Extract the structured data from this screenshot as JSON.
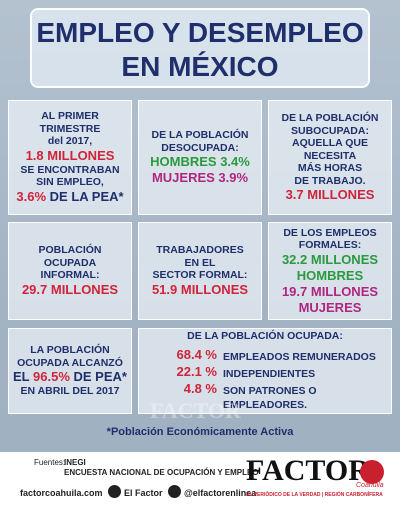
{
  "header": {
    "title_lines": [
      "EMPLEO Y DESEMPLEO",
      "EN MÉXICO"
    ]
  },
  "cells": [
    {
      "lines": [
        [
          {
            "text": "AL PRIMER"
          }
        ],
        [
          {
            "text": "TRIMESTRE"
          }
        ],
        [
          {
            "text": "del 2017,"
          }
        ],
        [
          {
            "text": "1.8 MILLONES",
            "color": "#d0243a"
          }
        ],
        [
          {
            "text": "SE ENCONTRABAN"
          }
        ],
        [
          {
            "text": "SIN EMPLEO,"
          }
        ],
        [
          {
            "text": "3.6%",
            "color": "#d0243a"
          },
          {
            "text": " DE LA PEA*"
          }
        ]
      ]
    },
    {
      "lines": [
        [
          {
            "text": "DE LA POBLACIÓN"
          }
        ],
        [
          {
            "text": "DESOCUPADA:"
          }
        ],
        [
          {
            "text": "HOMBRES 3.4%",
            "color": "#2a9a3f"
          }
        ],
        [
          {
            "text": "MUJERES 3.9%",
            "color": "#b0267f"
          }
        ]
      ]
    },
    {
      "lines": [
        [
          {
            "text": "DE LA POBLACIÓN"
          }
        ],
        [
          {
            "text": "SUBOCUPADA:"
          }
        ],
        [
          {
            "text": "AQUELLA QUE"
          }
        ],
        [
          {
            "text": "NECESITA"
          }
        ],
        [
          {
            "text": "MÁS HORAS"
          }
        ],
        [
          {
            "text": "DE TRABAJO."
          }
        ],
        [
          {
            "text": "3.7 MILLONES",
            "color": "#d0243a"
          }
        ]
      ]
    },
    {
      "lines": [
        [
          {
            "text": "POBLACIÓN"
          }
        ],
        [
          {
            "text": "OCUPADA"
          }
        ],
        [
          {
            "text": "INFORMAL:"
          }
        ],
        [
          {
            "text": "29.7 MILLONES",
            "color": "#d0243a"
          }
        ]
      ]
    },
    {
      "lines": [
        [
          {
            "text": "TRABAJADORES"
          }
        ],
        [
          {
            "text": "EN EL"
          }
        ],
        [
          {
            "text": "SECTOR FORMAL:"
          }
        ],
        [
          {
            "text": "51.9 MILLONES",
            "color": "#d0243a"
          }
        ]
      ]
    },
    {
      "lines": [
        [
          {
            "text": "DE LOS EMPLEOS"
          }
        ],
        [
          {
            "text": "FORMALES:"
          }
        ],
        [
          {
            "text": "32.2 MILLONES",
            "color": "#2a9a3f"
          }
        ],
        [
          {
            "text": "HOMBRES",
            "color": "#2a9a3f"
          }
        ],
        [
          {
            "text": "19.7 MILLONES",
            "color": "#b0267f"
          }
        ],
        [
          {
            "text": "MUJERES",
            "color": "#b0267f"
          }
        ]
      ]
    },
    {
      "lines": [
        [
          {
            "text": "LA POBLACIÓN"
          }
        ],
        [
          {
            "text": "OCUPADA ALCANZÓ"
          }
        ],
        [
          {
            "text": "EL "
          },
          {
            "text": "96.5%",
            "color": "#d0243a"
          },
          {
            "text": " DE PEA*"
          }
        ],
        [
          {
            "text": "EN ABRIL DEL 2017"
          }
        ]
      ]
    },
    {
      "lines": [
        [
          {
            "text": "DE LA POBLACIÓN OCUPADA:"
          }
        ]
      ],
      "items": [
        {
          "value": "68.4 %",
          "label": [
            "EMPLEADOS REMUNERADOS"
          ]
        },
        {
          "value": "22.1 %",
          "label": [
            "INDEPENDIENTES"
          ]
        },
        {
          "value": "4.8 %",
          "label": [
            "SON PATRONES O",
            "EMPLEADORES."
          ]
        }
      ]
    }
  ],
  "watermark": "FACTOR",
  "footnote": "*Población Económicamente Activa",
  "footer": {
    "sources_label": "Fuentes:",
    "sources": [
      "INEGI",
      "ENCUESTA NACIONAL DE OCUPACIÓN Y EMPLEO"
    ],
    "website": "factorcoahuila.com",
    "facebook": "El Factor",
    "twitter": "@elfactorenlinea",
    "logo": "FACTOR",
    "logo_region": "Coahuila",
    "tagline": "EL PERIÓDICO DE LA VERDAD | REGIÓN CARBONÍFERA"
  }
}
